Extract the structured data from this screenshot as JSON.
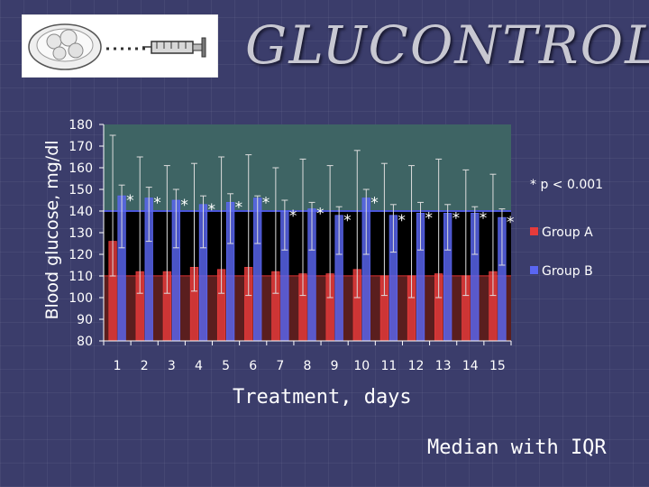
{
  "title": "GLUCONTROL",
  "colors": {
    "group_a": "#e63b3b",
    "group_b": "#5a66f2",
    "plot_upper_band": "#3e6464",
    "plot_middle_band": "#000000",
    "plot_lower_band": "#5a1e1e"
  },
  "chart_data": {
    "type": "bar",
    "title": "",
    "xlabel": "Treatment, days",
    "ylabel": "Blood glucose, mg/dl",
    "ylim": [
      80,
      180
    ],
    "yticks": [
      80,
      90,
      100,
      110,
      120,
      130,
      140,
      150,
      160,
      170,
      180
    ],
    "categories": [
      "1",
      "2",
      "3",
      "4",
      "5",
      "6",
      "7",
      "8",
      "9",
      "10",
      "11",
      "12",
      "13",
      "14",
      "15"
    ],
    "bands": [
      110,
      140
    ],
    "series": [
      {
        "name": "Group A",
        "values": [
          126,
          112,
          112,
          114,
          113,
          114,
          112,
          111,
          111,
          113,
          110,
          110,
          111,
          110,
          112
        ],
        "error_low": [
          110,
          102,
          102,
          103,
          102,
          101,
          102,
          101,
          100,
          100,
          101,
          100,
          100,
          101,
          101
        ],
        "error_high": [
          175,
          165,
          161,
          162,
          165,
          166,
          160,
          164,
          161,
          168,
          162,
          161,
          164,
          159,
          157
        ]
      },
      {
        "name": "Group B",
        "values": [
          147,
          146,
          145,
          143,
          144,
          146,
          140,
          141,
          138,
          146,
          138,
          139,
          139,
          139,
          137
        ],
        "error_low": [
          123,
          126,
          123,
          123,
          125,
          125,
          122,
          122,
          120,
          120,
          121,
          122,
          122,
          120,
          115
        ],
        "error_high": [
          152,
          151,
          150,
          147,
          148,
          147,
          145,
          144,
          142,
          150,
          143,
          144,
          143,
          142,
          141
        ]
      }
    ],
    "significance_label": "* p < 0.001",
    "significance_marker": "*",
    "legend_position": "right",
    "grid": false
  },
  "note": "Median with IQR"
}
